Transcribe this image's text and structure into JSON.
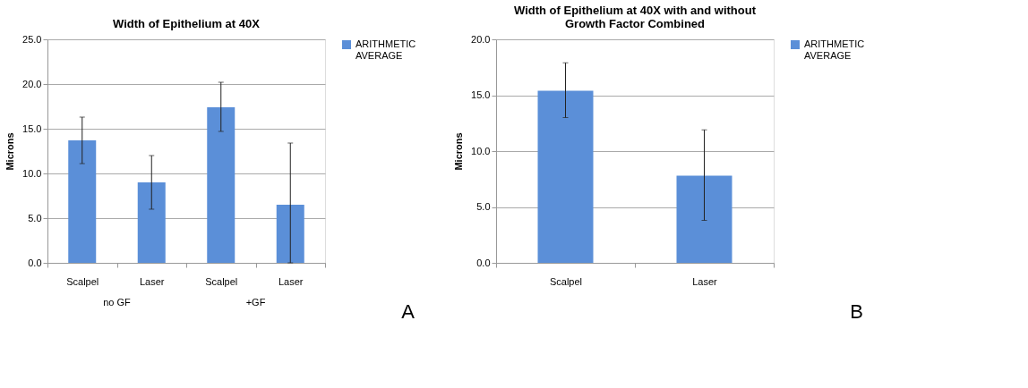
{
  "chart_data": [
    {
      "type": "bar",
      "title": "Width of Epithelium at 40X",
      "ylabel": "Microns",
      "categories": [
        "Scalpel",
        "Laser",
        "Scalpel",
        "Laser"
      ],
      "series": [
        {
          "name": "ARITHMETIC AVERAGE",
          "color": "#5b8fd8",
          "values": [
            13.7,
            9.0,
            17.4,
            6.5
          ],
          "errors": [
            [
              11.1,
              16.3
            ],
            [
              6.0,
              12.0
            ],
            [
              14.7,
              20.2
            ],
            [
              0.0,
              13.4
            ]
          ]
        }
      ],
      "ylim": [
        0,
        25
      ],
      "yticks": [
        {
          "value": 0,
          "label": "0.0"
        },
        {
          "value": 5,
          "label": "5.0"
        },
        {
          "value": 10,
          "label": "10.0"
        },
        {
          "value": 15,
          "label": "15.0"
        },
        {
          "value": 20,
          "label": "20.0"
        },
        {
          "value": 25,
          "label": "25.0"
        }
      ],
      "grid": "y",
      "legend": "right",
      "annotations": [
        "no GF",
        "+GF",
        "A"
      ]
    },
    {
      "type": "bar",
      "title": "Width of Epithelium at 40X with and without Growth Factor Combined",
      "ylabel": "Microns",
      "categories": [
        "Scalpel",
        "Laser"
      ],
      "series": [
        {
          "name": "ARITHMETIC AVERAGE",
          "color": "#5b8fd8",
          "values": [
            15.4,
            7.8
          ],
          "errors": [
            [
              13.0,
              17.9
            ],
            [
              3.8,
              11.9
            ]
          ]
        }
      ],
      "ylim": [
        0,
        20
      ],
      "yticks": [
        {
          "value": 0,
          "label": "0.0"
        },
        {
          "value": 5,
          "label": "5.0"
        },
        {
          "value": 10,
          "label": "10.0"
        },
        {
          "value": 15,
          "label": "15.0"
        },
        {
          "value": 20,
          "label": "20.0"
        }
      ],
      "grid": "y",
      "legend": "right",
      "annotations": [
        "B"
      ]
    }
  ]
}
